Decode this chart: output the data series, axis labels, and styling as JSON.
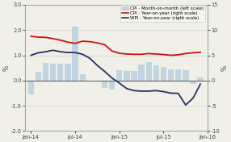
{
  "x_labels": [
    "Jan-14",
    "Jul-14",
    "Jan-15",
    "Jul-15",
    "Jan-16"
  ],
  "x_ticks": [
    0,
    6,
    12,
    18,
    24
  ],
  "ylim_left": [
    -2.0,
    3.0
  ],
  "ylim_right": [
    -10,
    15
  ],
  "yticks_left": [
    -2.0,
    -1.0,
    0.0,
    1.0,
    2.0,
    3.0
  ],
  "yticks_right": [
    -10,
    -5,
    0,
    5,
    10,
    15
  ],
  "bar_color": "#b8cfe0",
  "cpi_yoy_color": "#cc1111",
  "wpi_yoy_color": "#2b3060",
  "legend_labels": [
    "CPI - Month-on-month (left scale)",
    "CPI - Year-on-year (right scale)",
    "WPI - Year-on-year (right scale)"
  ],
  "bar_data": [
    -0.55,
    0.35,
    0.7,
    0.65,
    0.65,
    0.65,
    2.15,
    0.25,
    -0.05,
    0.0,
    -0.3,
    -0.35,
    0.4,
    0.38,
    0.38,
    0.62,
    0.72,
    0.6,
    0.55,
    0.45,
    0.45,
    0.42,
    -0.15,
    0.12
  ],
  "cpi_yoy_data": [
    8.75,
    8.6,
    8.55,
    8.3,
    8.0,
    7.6,
    7.35,
    7.8,
    7.7,
    7.45,
    7.1,
    5.85,
    5.4,
    5.25,
    5.2,
    5.2,
    5.35,
    5.25,
    5.15,
    5.0,
    5.1,
    5.35,
    5.5,
    5.6
  ],
  "wpi_yoy_data": [
    5.0,
    5.5,
    5.7,
    6.0,
    5.7,
    5.55,
    5.55,
    5.2,
    4.4,
    3.0,
    1.8,
    0.5,
    -0.5,
    -1.6,
    -2.0,
    -2.1,
    -2.1,
    -2.0,
    -2.2,
    -2.5,
    -2.55,
    -4.85,
    -3.5,
    -0.7
  ],
  "ylabel_left": "%",
  "ylabel_right": "%",
  "bg_color": "#f0f0e8",
  "grid_color": "#d0d0c8",
  "spine_color": "#999999"
}
